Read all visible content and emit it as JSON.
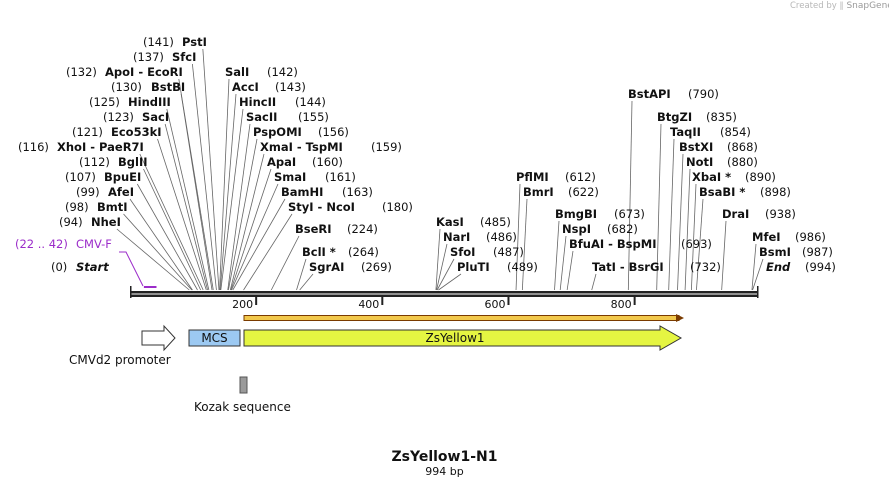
{
  "credit": {
    "prefix": "Created by",
    "brand": "SnapGene"
  },
  "title": "ZsYellow1-N1",
  "length_label": "994 bp",
  "sequence_length": 994,
  "colors": {
    "backbone": "#222222",
    "primer": "#9b2cc9",
    "yellow": "#e5f542",
    "yellow_edge": "#7a8a00",
    "mcs": "#9cc9f2",
    "kozak": "#9a9a9a",
    "orf_line": "#f2c84b",
    "orf_edge": "#7a3b00"
  },
  "axis": {
    "ticks": [
      200,
      400,
      600,
      800
    ]
  },
  "sites": [
    {
      "name": "PstI",
      "pos": "(141)",
      "at": 141
    },
    {
      "name": "SfcI",
      "pos": "(137)",
      "at": 137
    },
    {
      "name": "ApoI - EcoRI",
      "pos": "(132)",
      "at": 132
    },
    {
      "name": "BstBI",
      "pos": "(130)",
      "at": 130
    },
    {
      "name": "HindIII",
      "pos": "(125)",
      "at": 125
    },
    {
      "name": "SacI",
      "pos": "(123)",
      "at": 123
    },
    {
      "name": "Eco53kI",
      "pos": "(121)",
      "at": 121
    },
    {
      "name": "XhoI - PaeR7I",
      "pos": "(116)",
      "at": 116
    },
    {
      "name": "BglII",
      "pos": "(112)",
      "at": 112
    },
    {
      "name": "BpuEI",
      "pos": "(107)",
      "at": 107
    },
    {
      "name": "AfeI",
      "pos": "(99)",
      "at": 99
    },
    {
      "name": "BmtI",
      "pos": "(98)",
      "at": 98
    },
    {
      "name": "NheI",
      "pos": "(94)",
      "at": 94
    },
    {
      "name": "SalI",
      "pos": "(142)",
      "at": 142
    },
    {
      "name": "AccI",
      "pos": "(143)",
      "at": 143
    },
    {
      "name": "HincII",
      "pos": "(144)",
      "at": 144
    },
    {
      "name": "SacII",
      "pos": "(155)",
      "at": 155
    },
    {
      "name": "PspOMI",
      "pos": "(156)",
      "at": 156
    },
    {
      "name": "XmaI - TspMI",
      "pos": "(159)",
      "at": 159
    },
    {
      "name": "ApaI",
      "pos": "(160)",
      "at": 160
    },
    {
      "name": "SmaI",
      "pos": "(161)",
      "at": 161
    },
    {
      "name": "BamHI",
      "pos": "(163)",
      "at": 163
    },
    {
      "name": "StyI - NcoI",
      "pos": "(180)",
      "at": 180
    },
    {
      "name": "BseRI",
      "pos": "(224)",
      "at": 224
    },
    {
      "name": "BclI *",
      "pos": "(264)",
      "at": 264
    },
    {
      "name": "SgrAI",
      "pos": "(269)",
      "at": 269
    },
    {
      "name": "KasI",
      "pos": "(485)",
      "at": 485
    },
    {
      "name": "NarI",
      "pos": "(486)",
      "at": 486
    },
    {
      "name": "SfoI",
      "pos": "(487)",
      "at": 487
    },
    {
      "name": "PluTI",
      "pos": "(489)",
      "at": 489
    },
    {
      "name": "PflMI",
      "pos": "(612)",
      "at": 612
    },
    {
      "name": "BmrI",
      "pos": "(622)",
      "at": 622
    },
    {
      "name": "BmgBI",
      "pos": "(673)",
      "at": 673
    },
    {
      "name": "NspI",
      "pos": "(682)",
      "at": 682
    },
    {
      "name": "BfuAI - BspMI",
      "pos": "(693)",
      "at": 693
    },
    {
      "name": "TatI - BsrGI",
      "pos": "(732)",
      "at": 732
    },
    {
      "name": "BstAPI",
      "pos": "(790)",
      "at": 790
    },
    {
      "name": "BtgZI",
      "pos": "(835)",
      "at": 835
    },
    {
      "name": "TaqII",
      "pos": "(854)",
      "at": 854
    },
    {
      "name": "BstXI",
      "pos": "(868)",
      "at": 868
    },
    {
      "name": "NotI",
      "pos": "(880)",
      "at": 880
    },
    {
      "name": "XbaI *",
      "pos": "(890)",
      "at": 890
    },
    {
      "name": "BsaBI *",
      "pos": "(898)",
      "at": 898
    },
    {
      "name": "DraI",
      "pos": "(938)",
      "at": 938
    },
    {
      "name": "MfeI",
      "pos": "(986)",
      "at": 986
    },
    {
      "name": "BsmI",
      "pos": "(987)",
      "at": 987
    }
  ],
  "start_label": {
    "name": "Start",
    "pos": "(0)"
  },
  "end_label": {
    "name": "End",
    "pos": "(994)"
  },
  "primer": {
    "name": "CMV-F",
    "range": "(22 .. 42)",
    "from": 22,
    "to": 42
  },
  "features": {
    "promoter": "CMVd2 promoter",
    "mcs": "MCS",
    "zsyellow": "ZsYellow1",
    "kozak": "Kozak sequence"
  }
}
